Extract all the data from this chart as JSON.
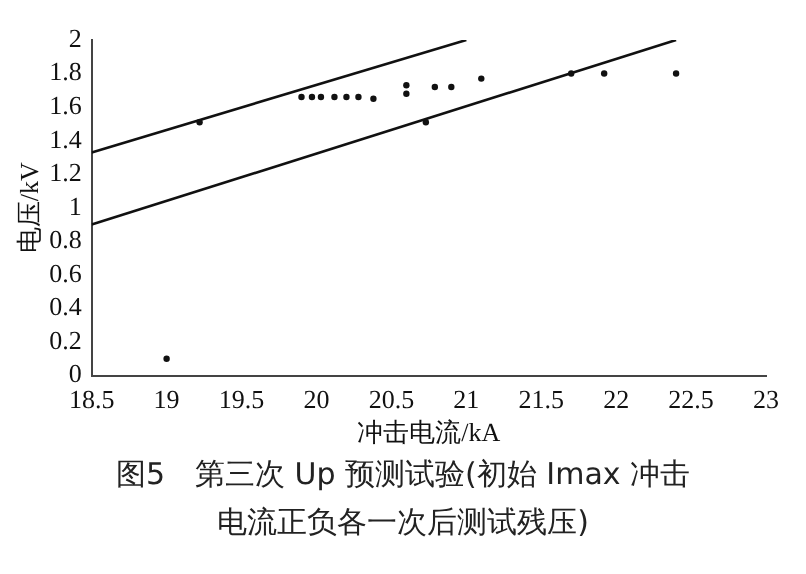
{
  "chart_data": {
    "type": "scatter",
    "xlabel": "冲击电流/kA",
    "ylabel": "电压/kV",
    "xlim": [
      18.5,
      23
    ],
    "xticks": [
      18.5,
      19,
      19.5,
      20,
      20.5,
      21,
      21.5,
      22,
      22.5,
      23
    ],
    "ylim": [
      0,
      2
    ],
    "yticks": [
      0,
      0.2,
      0.4,
      0.6,
      0.8,
      1,
      1.2,
      1.4,
      1.6,
      1.8,
      2
    ],
    "grid": false,
    "legend": false,
    "series": [
      {
        "marker": "circle",
        "color": "#111111",
        "x": [
          19.0,
          19.22,
          19.9,
          19.97,
          20.03,
          20.12,
          20.2,
          20.28,
          20.38,
          20.6,
          20.6,
          20.73,
          20.79,
          20.9,
          21.1,
          21.7,
          21.92,
          22.4
        ],
        "values": [
          0.1,
          1.51,
          1.66,
          1.66,
          1.66,
          1.66,
          1.66,
          1.66,
          1.65,
          1.73,
          1.68,
          1.51,
          1.72,
          1.72,
          1.77,
          1.8,
          1.8,
          1.8
        ]
      },
      {
        "type": "line",
        "color": "#111111",
        "x": [
          18.5,
          21.0
        ],
        "values": [
          1.33,
          2.0
        ]
      },
      {
        "type": "line",
        "color": "#111111",
        "x": [
          18.5,
          22.4
        ],
        "values": [
          0.9,
          2.0
        ]
      }
    ],
    "annotations": [
      "图5　第三次 Up 预测试验(初始 Imax 冲击",
      "电流正负各一次后测试残压)"
    ]
  }
}
